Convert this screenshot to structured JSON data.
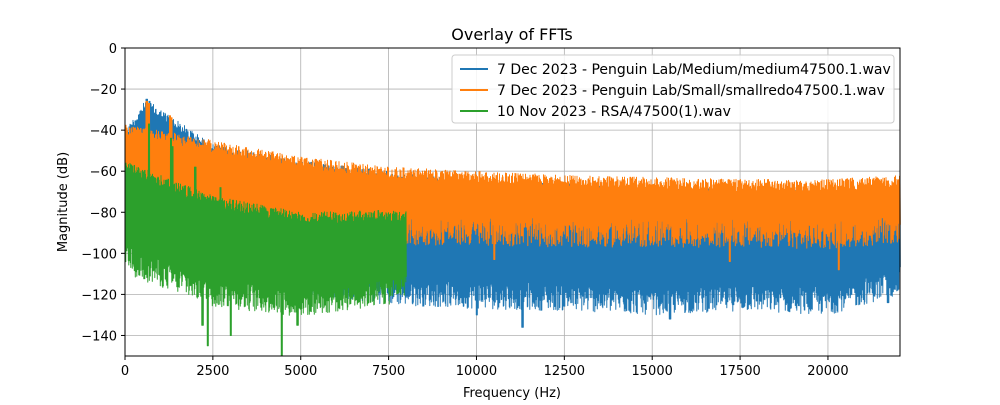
{
  "chart_data": {
    "type": "line",
    "title": "Overlay of FFTs",
    "xlabel": "Frequency (Hz)",
    "ylabel": "Magnitude (dB)",
    "xlim": [
      0,
      22050
    ],
    "ylim": [
      -150,
      0
    ],
    "xticks": [
      0,
      2500,
      5000,
      7500,
      10000,
      12500,
      15000,
      17500,
      20000
    ],
    "xtick_labels": [
      "0",
      "2500",
      "5000",
      "7500",
      "10000",
      "12500",
      "15000",
      "17500",
      "20000"
    ],
    "yticks": [
      0,
      -20,
      -40,
      -60,
      -80,
      -100,
      -120,
      -140
    ],
    "ytick_labels": [
      "0",
      "−20",
      "−40",
      "−60",
      "−80",
      "−100",
      "−120",
      "−140"
    ],
    "grid": true,
    "legend_position": "top-right",
    "series": [
      {
        "name": "7 Dec 2023 - Penguin Lab/Medium/medium47500.1.wav",
        "color": "#1f77b4",
        "x_range": [
          0,
          22050
        ],
        "upper_envelope": [
          [
            0,
            -40
          ],
          [
            600,
            -25
          ],
          [
            2500,
            -47
          ],
          [
            5000,
            -55
          ],
          [
            7500,
            -60
          ],
          [
            10000,
            -65
          ],
          [
            12500,
            -66
          ],
          [
            15000,
            -68
          ],
          [
            17500,
            -68
          ],
          [
            20000,
            -70
          ],
          [
            22050,
            -70
          ]
        ],
        "lower_envelope": [
          [
            0,
            -100
          ],
          [
            2500,
            -112
          ],
          [
            5000,
            -120
          ],
          [
            7500,
            -125
          ],
          [
            10000,
            -127
          ],
          [
            12500,
            -128
          ],
          [
            15000,
            -130
          ],
          [
            17500,
            -128
          ],
          [
            20000,
            -130
          ],
          [
            22050,
            -120
          ]
        ],
        "peaks": [
          [
            620,
            -25
          ],
          [
            700,
            -26
          ],
          [
            1300,
            -36
          ],
          [
            1350,
            -38
          ]
        ],
        "dips": [
          [
            10000,
            -130
          ],
          [
            11300,
            -136
          ],
          [
            15500,
            -132
          ],
          [
            19500,
            -127
          ],
          [
            21700,
            -124
          ]
        ]
      },
      {
        "name": "7 Dec 2023 - Penguin Lab/Small/smallredo47500.1.wav",
        "color": "#ff7f0e",
        "x_range": [
          0,
          22050
        ],
        "upper_envelope": [
          [
            0,
            -37
          ],
          [
            2500,
            -45
          ],
          [
            5000,
            -53
          ],
          [
            7500,
            -58
          ],
          [
            10000,
            -60
          ],
          [
            12500,
            -62
          ],
          [
            15000,
            -63
          ],
          [
            17500,
            -64
          ],
          [
            20000,
            -64
          ],
          [
            22050,
            -62
          ]
        ],
        "lower_envelope": [
          [
            0,
            -92
          ],
          [
            2500,
            -94
          ],
          [
            5000,
            -96
          ],
          [
            7500,
            -96
          ],
          [
            10000,
            -96
          ],
          [
            12500,
            -97
          ],
          [
            15000,
            -97
          ],
          [
            17500,
            -97
          ],
          [
            20000,
            -98
          ],
          [
            22050,
            -95
          ]
        ],
        "peaks": [
          [
            620,
            -26
          ],
          [
            680,
            -27
          ],
          [
            1280,
            -33
          ],
          [
            1320,
            -34
          ]
        ],
        "dips": [
          [
            10500,
            -103
          ],
          [
            17200,
            -104
          ],
          [
            20300,
            -108
          ]
        ]
      },
      {
        "name": "10 Nov 2023 - RSA/47500(1).wav",
        "color": "#2ca02c",
        "x_range": [
          0,
          8000
        ],
        "upper_envelope": [
          [
            0,
            -55
          ],
          [
            2500,
            -72
          ],
          [
            5000,
            -80
          ],
          [
            7500,
            -79
          ],
          [
            8000,
            -79
          ]
        ],
        "lower_envelope": [
          [
            0,
            -110
          ],
          [
            2500,
            -126
          ],
          [
            5000,
            -131
          ],
          [
            7500,
            -125
          ],
          [
            8000,
            -120
          ]
        ],
        "peaks": [
          [
            680,
            -37
          ],
          [
            1310,
            -44
          ],
          [
            1350,
            -48
          ],
          [
            2000,
            -58
          ],
          [
            2720,
            -68
          ]
        ],
        "dips": [
          [
            2200,
            -135
          ],
          [
            2350,
            -145
          ],
          [
            3000,
            -140
          ],
          [
            4450,
            -150
          ],
          [
            4900,
            -135
          ]
        ]
      }
    ]
  }
}
